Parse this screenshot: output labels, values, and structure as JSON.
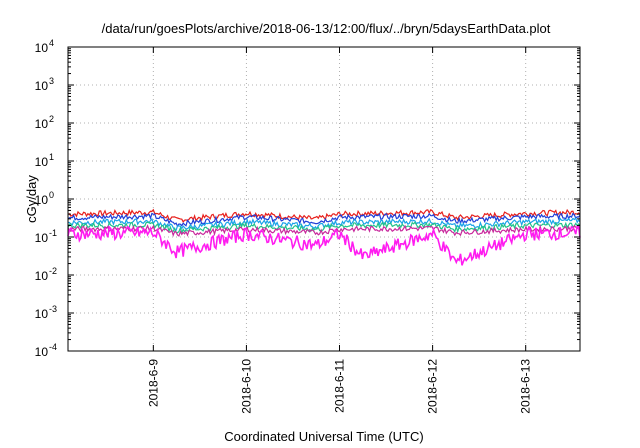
{
  "chart_data": {
    "type": "line",
    "title": "/data/run/goesPlots/archive/2018-06-13/12:00/flux/../bryn/5daysEarthData.plot",
    "xlabel": "Coordinated Universal Time (UTC)",
    "ylabel": "cGy/day",
    "yscale": "log",
    "ylim": [
      0.0001,
      10000
    ],
    "xlim": [
      "2018-06-08T02:00",
      "2018-06-13T14:00"
    ],
    "y_ticks": [
      {
        "mant": "10",
        "exp": "4",
        "value": 10000
      },
      {
        "mant": "10",
        "exp": "3",
        "value": 1000
      },
      {
        "mant": "10",
        "exp": "2",
        "value": 100
      },
      {
        "mant": "10",
        "exp": "1",
        "value": 10
      },
      {
        "mant": "10",
        "exp": "0",
        "value": 1
      },
      {
        "mant": "10",
        "exp": "-1",
        "value": 0.1
      },
      {
        "mant": "10",
        "exp": "-2",
        "value": 0.01
      },
      {
        "mant": "10",
        "exp": "-3",
        "value": 0.001
      },
      {
        "mant": "10",
        "exp": "-4",
        "value": 0.0001
      }
    ],
    "x_ticks": [
      {
        "label": "2018-6-9",
        "value": "2018-06-09T00:00"
      },
      {
        "label": "2018-6-10",
        "value": "2018-06-10T00:00"
      },
      {
        "label": "2018-6-11",
        "value": "2018-06-11T00:00"
      },
      {
        "label": "2018-6-12",
        "value": "2018-06-12T00:00"
      },
      {
        "label": "2018-6-13",
        "value": "2018-06-13T00:00"
      }
    ],
    "grid": true,
    "series": [
      {
        "color": "#e8201c",
        "level": 0.36,
        "x": [
          "2018-06-08T02:00",
          "2018-06-09T00:00",
          "2018-06-09T06:00",
          "2018-06-10T00:00",
          "2018-06-10T18:00",
          "2018-06-11T00:00",
          "2018-06-12T00:00",
          "2018-06-12T06:00",
          "2018-06-13T00:00",
          "2018-06-13T14:00"
        ],
        "y": [
          0.4,
          0.45,
          0.28,
          0.42,
          0.3,
          0.4,
          0.45,
          0.32,
          0.42,
          0.45
        ]
      },
      {
        "color": "#1f3fd8",
        "level": 0.3,
        "x": [
          "2018-06-08T02:00",
          "2018-06-09T00:00",
          "2018-06-09T06:00",
          "2018-06-10T00:00",
          "2018-06-10T18:00",
          "2018-06-11T00:00",
          "2018-06-12T00:00",
          "2018-06-12T06:00",
          "2018-06-13T00:00",
          "2018-06-13T14:00"
        ],
        "y": [
          0.32,
          0.36,
          0.22,
          0.34,
          0.25,
          0.33,
          0.36,
          0.26,
          0.34,
          0.36
        ]
      },
      {
        "color": "#1aa3e8",
        "level": 0.22,
        "x": [
          "2018-06-08T02:00",
          "2018-06-09T00:00",
          "2018-06-09T06:00",
          "2018-06-10T00:00",
          "2018-06-10T18:00",
          "2018-06-11T00:00",
          "2018-06-12T00:00",
          "2018-06-12T06:00",
          "2018-06-13T00:00",
          "2018-06-13T14:00"
        ],
        "y": [
          0.24,
          0.26,
          0.17,
          0.25,
          0.19,
          0.24,
          0.26,
          0.19,
          0.25,
          0.27
        ]
      },
      {
        "color": "#22c38a",
        "level": 0.18,
        "x": [
          "2018-06-08T02:00",
          "2018-06-09T00:00",
          "2018-06-09T06:00",
          "2018-06-10T00:00",
          "2018-06-10T18:00",
          "2018-06-11T00:00",
          "2018-06-12T00:00",
          "2018-06-12T06:00",
          "2018-06-13T00:00",
          "2018-06-13T14:00"
        ],
        "y": [
          0.2,
          0.21,
          0.15,
          0.2,
          0.16,
          0.2,
          0.21,
          0.16,
          0.2,
          0.21
        ]
      },
      {
        "color": "#c8289c",
        "level": 0.14,
        "x": [
          "2018-06-08T02:00",
          "2018-06-09T00:00",
          "2018-06-09T06:00",
          "2018-06-10T00:00",
          "2018-06-10T18:00",
          "2018-06-11T00:00",
          "2018-06-12T00:00",
          "2018-06-12T06:00",
          "2018-06-13T00:00",
          "2018-06-13T14:00"
        ],
        "y": [
          0.16,
          0.17,
          0.12,
          0.16,
          0.13,
          0.16,
          0.17,
          0.13,
          0.16,
          0.17
        ]
      },
      {
        "color": "#ff1cf0",
        "level": 0.1,
        "x": [
          "2018-06-08T02:00",
          "2018-06-09T00:00",
          "2018-06-09T06:00",
          "2018-06-10T00:00",
          "2018-06-10T18:00",
          "2018-06-11T00:00",
          "2018-06-11T06:00",
          "2018-06-12T00:00",
          "2018-06-12T06:00",
          "2018-06-13T00:00",
          "2018-06-13T14:00"
        ],
        "y": [
          0.12,
          0.13,
          0.04,
          0.12,
          0.06,
          0.12,
          0.03,
          0.12,
          0.022,
          0.12,
          0.13
        ]
      }
    ]
  }
}
